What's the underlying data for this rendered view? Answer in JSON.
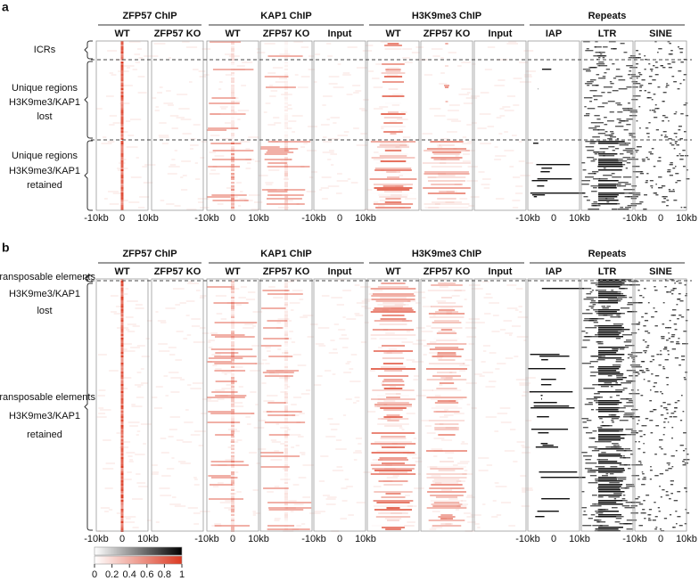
{
  "panels": [
    {
      "label": "a",
      "groups": [
        {
          "title": "ZFP57 ChIP",
          "columns": [
            "WT",
            "ZFP57 KO"
          ]
        },
        {
          "title": "KAP1 ChIP",
          "columns": [
            "WT",
            "ZFP57 KO",
            "Input"
          ]
        },
        {
          "title": "H3K9me3 ChIP",
          "columns": [
            "WT",
            "ZFP57 KO",
            "Input"
          ]
        },
        {
          "title": "Repeats",
          "columns": [
            "IAP",
            "LTR",
            "SINE"
          ]
        }
      ],
      "row_groups": [
        {
          "lines": [
            "ICRs"
          ]
        },
        {
          "lines": [
            "Unique regions",
            "H3K9me3/KAP1",
            "lost"
          ]
        },
        {
          "lines": [
            "Unique regions",
            "H3K9me3/KAP1",
            "retained"
          ]
        }
      ]
    },
    {
      "label": "b",
      "groups": [
        {
          "title": "ZFP57 ChIP",
          "columns": [
            "WT",
            "ZFP57 KO"
          ]
        },
        {
          "title": "KAP1 ChIP",
          "columns": [
            "WT",
            "ZFP57 KO",
            "Input"
          ]
        },
        {
          "title": "H3K9me3 ChIP",
          "columns": [
            "WT",
            "ZFP57 KO",
            "Input"
          ]
        },
        {
          "title": "Repeats",
          "columns": [
            "IAP",
            "LTR",
            "SINE"
          ]
        }
      ],
      "row_groups": [
        {
          "lines": [
            "Transposable elements",
            "H3K9me3/KAP1",
            "lost"
          ]
        },
        {
          "lines": [
            "Transposable elements",
            "H3K9me3/KAP1",
            "retained"
          ]
        }
      ]
    }
  ],
  "position_labels": [
    "-10kb",
    "0",
    "10kb"
  ],
  "colorbar": {
    "lim": [
      0,
      1
    ],
    "ticks": [
      0,
      0.2,
      0.4,
      0.6,
      0.8,
      1
    ]
  }
}
